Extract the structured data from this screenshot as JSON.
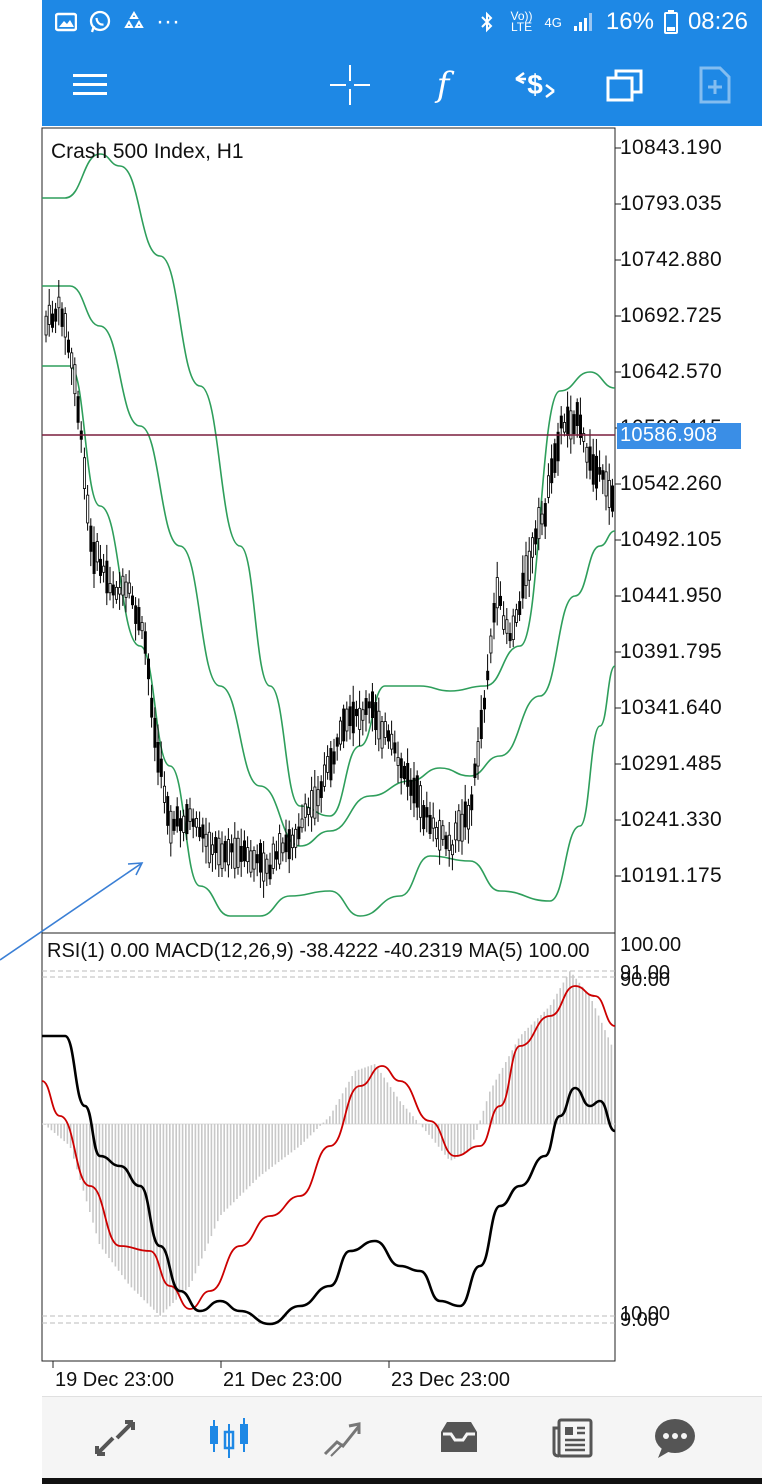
{
  "status_bar": {
    "left_icons": [
      "gallery-icon",
      "whatsapp-icon",
      "sync-icon",
      "more-icon"
    ],
    "more_text": "···",
    "volte_text": "Vo)) LTE",
    "network_text": "4G",
    "battery_percent": "16%",
    "time": "08:26"
  },
  "toolbar": {
    "menu_icon": "hamburger-menu-icon",
    "crosshair_icon": "crosshair-icon",
    "indicators_icon": "function-icon",
    "indicators_text": "f",
    "trade_icon": "dollar-exchange-icon",
    "windows_icon": "windows-icon",
    "templates_icon": "document-add-icon"
  },
  "chart": {
    "symbol": "Crash 500 Index, H1",
    "price_scale": [
      "10843.190",
      "10793.035",
      "10742.880",
      "10692.725",
      "10642.570",
      "10592.415",
      "10542.260",
      "10492.105",
      "10441.950",
      "10391.795",
      "10341.640",
      "10291.485",
      "10241.330",
      "10191.175"
    ],
    "current_price": "10586.908",
    "colors": {
      "candle": "#000000",
      "bollinger": "#2e9e5b",
      "price_line": "#7a1f3d",
      "current_price_bg": "#3a8ee6",
      "arrow": "#3a7fd5"
    }
  },
  "oscillator": {
    "title": "RSI(1) 0.00 MACD(12,26,9) -38.4222 -40.2319 MA(5) 100.00",
    "levels": {
      "top": "100.00",
      "upper_a": "91.00",
      "upper_b": "90.00",
      "lower_a": "10.00",
      "lower_b": "9.00"
    },
    "colors": {
      "macd_line": "#000000",
      "signal_line": "#cc0000",
      "histogram": "#c8c8c8"
    }
  },
  "time_axis": [
    "19 Dec 23:00",
    "21 Dec 23:00",
    "23 Dec 23:00"
  ],
  "bottom_nav": {
    "items": [
      {
        "name": "quotes",
        "icon": "quotes-arrows-icon",
        "active": false
      },
      {
        "name": "chart",
        "icon": "candlestick-icon",
        "active": true
      },
      {
        "name": "trade",
        "icon": "trade-trend-icon",
        "active": false
      },
      {
        "name": "history",
        "icon": "inbox-icon",
        "active": false
      },
      {
        "name": "news",
        "icon": "news-icon",
        "active": false
      },
      {
        "name": "messages",
        "icon": "chat-bubble-icon",
        "active": false
      }
    ],
    "active_color": "#1e88e5",
    "inactive_color": "#555555"
  }
}
